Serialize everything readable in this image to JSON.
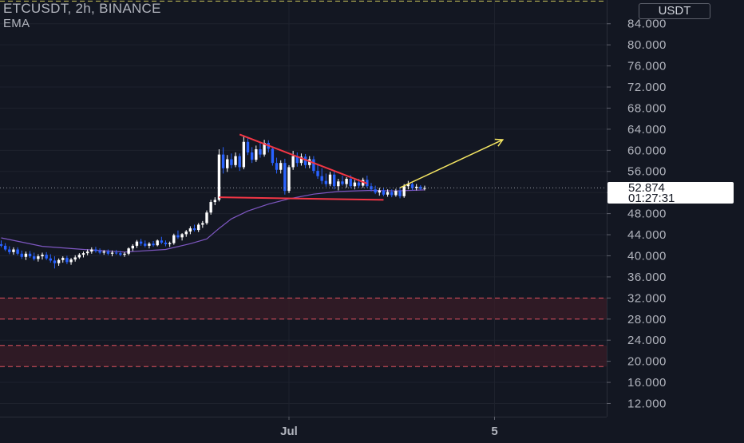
{
  "header": {
    "symbol_line": "ETCUSDT, 2h, BINANCE",
    "indicator": "EMA"
  },
  "price_axis": {
    "currency": "USDT",
    "current_price": "52.874",
    "countdown": "01:27:31"
  },
  "time_axis": {
    "labels": [
      "Jul",
      "5"
    ]
  },
  "colors": {
    "background": "#131722",
    "grid": "#1e222d",
    "bull": "#ffffff",
    "bear": "#2962ff",
    "ema": "#7e57c2",
    "trendline": "#f23645",
    "projection": "#f5e663",
    "zone": "#3a1c27",
    "zone_border": "#e05260"
  },
  "chart_data": {
    "type": "candlestick",
    "symbol": "ETCUSDT",
    "interval": "2h",
    "exchange": "BINANCE",
    "y_ticks": [
      84,
      80,
      76,
      72,
      68,
      64,
      60,
      56,
      52,
      48,
      44,
      40,
      36,
      32,
      28,
      24,
      20,
      16,
      12
    ],
    "y_tick_labels": [
      "84.000",
      "80.000",
      "76.000",
      "72.000",
      "68.000",
      "64.000",
      "60.000",
      "56.000",
      "52.000",
      "48.000",
      "44.000",
      "40.000",
      "36.000",
      "32.000",
      "28.000",
      "24.000",
      "20.000",
      "16.000",
      "12.000"
    ],
    "ylim": [
      9.5,
      88.5
    ],
    "x_ticks": [
      {
        "label": "Jul",
        "index": 70
      },
      {
        "label": "5",
        "index": 120
      }
    ],
    "x_range": [
      0,
      145
    ],
    "current_price": 52.874,
    "candles": [
      [
        0,
        42.2,
        42.9,
        41.6,
        41.9
      ],
      [
        1,
        41.9,
        42.4,
        40.9,
        41.2
      ],
      [
        2,
        41.2,
        41.8,
        40.3,
        40.7
      ],
      [
        3,
        40.7,
        41.6,
        40.2,
        41.2
      ],
      [
        4,
        41.2,
        41.6,
        40.1,
        40.4
      ],
      [
        5,
        40.4,
        41.0,
        39.4,
        39.8
      ],
      [
        6,
        39.8,
        40.8,
        39.2,
        40.4
      ],
      [
        7,
        40.4,
        40.9,
        39.6,
        39.9
      ],
      [
        8,
        39.9,
        40.6,
        39.1,
        39.4
      ],
      [
        9,
        39.4,
        40.3,
        38.9,
        39.9
      ],
      [
        10,
        39.9,
        40.6,
        39.3,
        40.2
      ],
      [
        11,
        40.2,
        40.7,
        39.2,
        39.5
      ],
      [
        12,
        39.5,
        40.3,
        38.7,
        39.1
      ],
      [
        13,
        39.1,
        39.9,
        37.6,
        38.6
      ],
      [
        14,
        38.6,
        39.5,
        38.1,
        39.2
      ],
      [
        15,
        39.2,
        39.9,
        38.7,
        39.6
      ],
      [
        16,
        39.6,
        40.0,
        38.4,
        38.8
      ],
      [
        17,
        38.8,
        39.6,
        38.3,
        39.3
      ],
      [
        18,
        39.3,
        40.1,
        38.9,
        39.7
      ],
      [
        19,
        39.7,
        40.5,
        39.4,
        40.2
      ],
      [
        20,
        40.2,
        40.8,
        39.7,
        40.5
      ],
      [
        21,
        40.5,
        41.2,
        40.1,
        40.8
      ],
      [
        22,
        40.8,
        41.6,
        40.4,
        41.2
      ],
      [
        23,
        41.2,
        41.7,
        40.6,
        40.9
      ],
      [
        24,
        40.9,
        41.4,
        40.3,
        40.6
      ],
      [
        25,
        40.6,
        41.1,
        40.2,
        40.8
      ],
      [
        26,
        40.8,
        41.2,
        40.1,
        40.4
      ],
      [
        27,
        40.4,
        41.0,
        39.9,
        40.6
      ],
      [
        28,
        40.6,
        41.1,
        40.2,
        40.5
      ],
      [
        29,
        40.5,
        40.9,
        39.9,
        40.2
      ],
      [
        30,
        40.2,
        40.7,
        39.8,
        40.4
      ],
      [
        31,
        40.4,
        41.6,
        40.1,
        41.4
      ],
      [
        32,
        41.4,
        42.2,
        40.9,
        41.9
      ],
      [
        33,
        41.9,
        43.0,
        41.5,
        42.7
      ],
      [
        34,
        42.7,
        43.2,
        41.9,
        42.3
      ],
      [
        35,
        42.3,
        42.9,
        41.6,
        41.9
      ],
      [
        36,
        41.9,
        42.6,
        41.4,
        42.3
      ],
      [
        37,
        42.3,
        42.8,
        41.7,
        42.0
      ],
      [
        38,
        42.0,
        43.1,
        41.8,
        42.9
      ],
      [
        39,
        42.9,
        43.6,
        42.2,
        42.5
      ],
      [
        40,
        42.5,
        42.9,
        41.8,
        42.2
      ],
      [
        41,
        42.2,
        42.7,
        41.7,
        42.4
      ],
      [
        42,
        42.4,
        44.2,
        42.1,
        43.9
      ],
      [
        43,
        43.9,
        44.8,
        43.2,
        43.5
      ],
      [
        44,
        43.5,
        44.3,
        42.9,
        44.1
      ],
      [
        45,
        44.1,
        44.9,
        43.6,
        44.6
      ],
      [
        46,
        44.6,
        45.6,
        44.1,
        45.2
      ],
      [
        47,
        45.2,
        45.9,
        44.6,
        44.9
      ],
      [
        48,
        44.9,
        46.2,
        44.5,
        45.9
      ],
      [
        49,
        45.9,
        46.6,
        45.3,
        46.2
      ],
      [
        50,
        46.2,
        48.6,
        45.9,
        48.2
      ],
      [
        51,
        48.2,
        50.6,
        47.8,
        50.2
      ],
      [
        52,
        50.2,
        51.1,
        49.6,
        50.6
      ],
      [
        53,
        50.6,
        60.2,
        50.3,
        59.2
      ],
      [
        54,
        59.2,
        60.6,
        55.6,
        56.6
      ],
      [
        55,
        56.6,
        59.1,
        55.9,
        58.3
      ],
      [
        56,
        58.3,
        59.4,
        56.6,
        57.2
      ],
      [
        57,
        57.2,
        59.6,
        56.8,
        58.9
      ],
      [
        58,
        58.9,
        59.4,
        56.1,
        56.8
      ],
      [
        59,
        56.8,
        62.8,
        56.4,
        61.6
      ],
      [
        60,
        61.6,
        62.4,
        59.1,
        59.6
      ],
      [
        61,
        59.6,
        60.6,
        57.6,
        58.2
      ],
      [
        62,
        58.2,
        60.9,
        57.8,
        60.2
      ],
      [
        63,
        60.2,
        61.4,
        58.6,
        59.2
      ],
      [
        64,
        59.2,
        62.0,
        58.8,
        61.4
      ],
      [
        65,
        61.4,
        61.9,
        59.6,
        60.3
      ],
      [
        66,
        60.3,
        60.6,
        57.1,
        57.6
      ],
      [
        67,
        57.6,
        58.6,
        55.6,
        56.3
      ],
      [
        68,
        56.3,
        58.1,
        55.6,
        57.6
      ],
      [
        69,
        57.6,
        58.4,
        51.6,
        52.3
      ],
      [
        70,
        52.3,
        57.2,
        51.9,
        56.8
      ],
      [
        71,
        56.8,
        59.9,
        56.3,
        58.9
      ],
      [
        72,
        58.9,
        59.6,
        56.9,
        57.6
      ],
      [
        73,
        57.6,
        59.4,
        57.1,
        58.8
      ],
      [
        74,
        58.8,
        59.3,
        56.6,
        57.2
      ],
      [
        75,
        57.2,
        58.9,
        56.6,
        58.3
      ],
      [
        76,
        58.3,
        58.9,
        55.6,
        56.1
      ],
      [
        77,
        56.1,
        57.2,
        54.6,
        55.1
      ],
      [
        78,
        55.1,
        56.6,
        53.6,
        54.2
      ],
      [
        79,
        54.2,
        55.6,
        53.1,
        53.6
      ],
      [
        80,
        53.6,
        55.9,
        53.2,
        55.4
      ],
      [
        81,
        55.4,
        56.1,
        52.6,
        53.2
      ],
      [
        82,
        53.2,
        54.6,
        52.4,
        54.1
      ],
      [
        83,
        54.1,
        55.2,
        53.3,
        53.6
      ],
      [
        84,
        53.6,
        54.9,
        52.9,
        54.6
      ],
      [
        85,
        54.6,
        55.3,
        52.8,
        53.2
      ],
      [
        86,
        53.2,
        54.4,
        52.6,
        53.9
      ],
      [
        87,
        53.9,
        54.6,
        52.9,
        53.3
      ],
      [
        88,
        53.3,
        54.8,
        52.9,
        54.4
      ],
      [
        89,
        54.4,
        55.2,
        52.9,
        53.2
      ],
      [
        90,
        53.2,
        53.8,
        52.2,
        52.6
      ],
      [
        91,
        52.6,
        53.3,
        51.7,
        52.0
      ],
      [
        92,
        52.0,
        52.9,
        51.4,
        52.4
      ],
      [
        93,
        52.4,
        52.8,
        51.3,
        51.6
      ],
      [
        94,
        51.6,
        52.6,
        51.2,
        52.1
      ],
      [
        95,
        52.1,
        52.6,
        51.1,
        51.5
      ],
      [
        96,
        51.5,
        52.7,
        51.2,
        52.3
      ],
      [
        97,
        52.3,
        52.9,
        50.9,
        51.3
      ],
      [
        98,
        51.3,
        53.6,
        51.0,
        53.2
      ],
      [
        99,
        53.2,
        54.2,
        52.6,
        53.6
      ],
      [
        100,
        53.6,
        53.9,
        52.4,
        52.8
      ],
      [
        101,
        52.8,
        53.6,
        52.4,
        53.1
      ],
      [
        102,
        53.1,
        53.4,
        52.5,
        52.7
      ],
      [
        103,
        52.7,
        53.3,
        52.4,
        52.874
      ]
    ],
    "ema": [
      [
        0,
        43.4
      ],
      [
        10,
        41.8
      ],
      [
        20,
        41.2
      ],
      [
        30,
        40.7
      ],
      [
        40,
        41.2
      ],
      [
        46,
        42.3
      ],
      [
        50,
        43.2
      ],
      [
        53,
        45.2
      ],
      [
        56,
        47.0
      ],
      [
        60,
        48.5
      ],
      [
        65,
        49.8
      ],
      [
        70,
        50.8
      ],
      [
        76,
        51.7
      ],
      [
        82,
        52.2
      ],
      [
        90,
        52.4
      ],
      [
        96,
        52.3
      ],
      [
        103,
        52.5
      ]
    ],
    "drawings": {
      "upper_trendline": [
        [
          58,
          63.0
        ],
        [
          89,
          53.7
        ]
      ],
      "lower_trendline": [
        [
          53,
          51.1
        ],
        [
          93,
          50.6
        ]
      ],
      "projection_arrow": [
        [
          97,
          52.9
        ],
        [
          122,
          62.0
        ]
      ],
      "support_zones": [
        [
          28,
          32
        ],
        [
          19,
          23
        ]
      ],
      "top_dashed_line": 88.3
    }
  }
}
